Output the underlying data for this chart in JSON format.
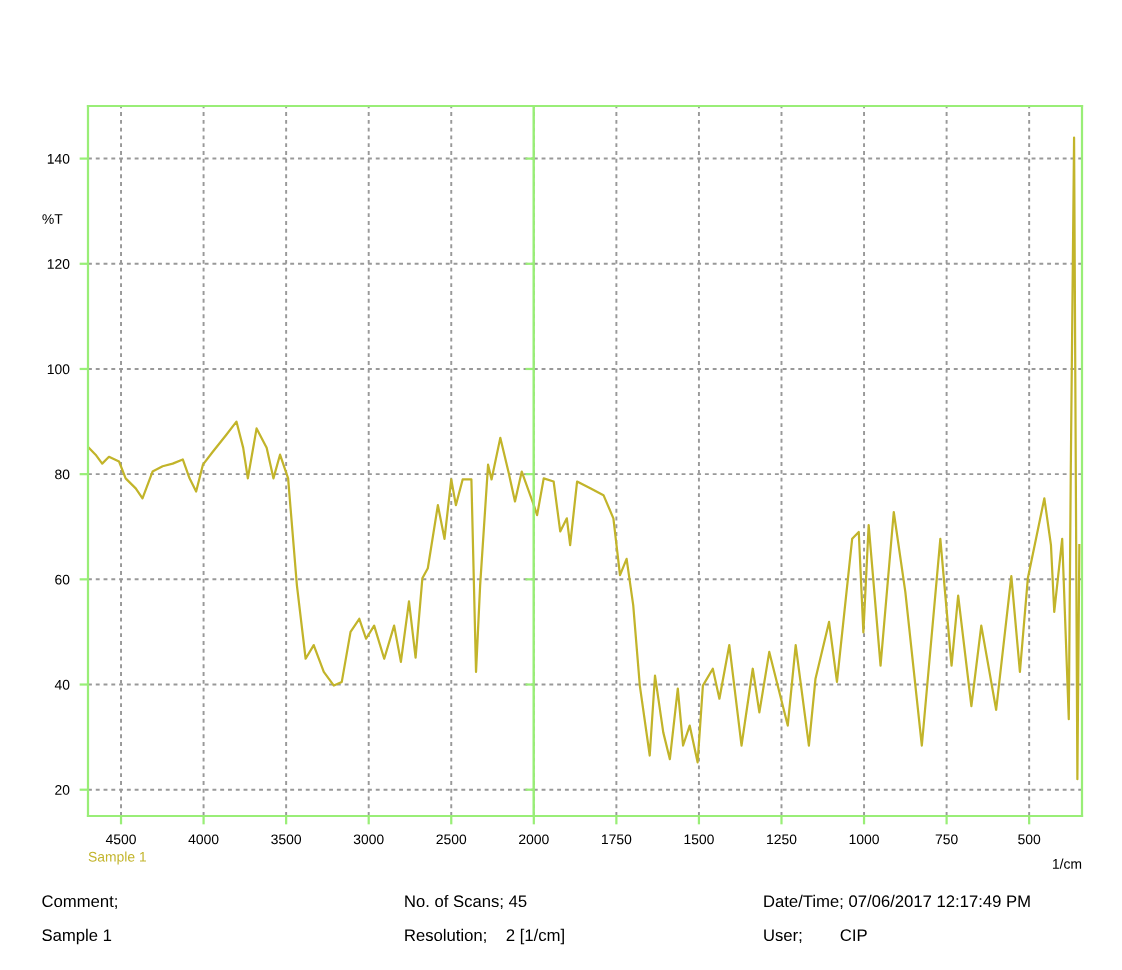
{
  "chart_data": [
    {
      "type": "line",
      "ylabel": "%T",
      "xlim": [
        4700,
        2000
      ],
      "xticks": [
        4500,
        4000,
        3500,
        3000,
        2500
      ],
      "ylim": [
        15,
        150
      ],
      "yticks": [
        20,
        40,
        60,
        80,
        100,
        120,
        140
      ],
      "grid": true,
      "annotations": [
        "Comment;",
        "Sample 1",
        "No. of Scans; 45",
        "Resolution;    2 [1/cm]",
        "Date/Time; 07/06/2017 12:17:49 PM",
        "User;        CIP"
      ],
      "series": [
        {
          "name": "Sample 1",
          "color": "#c2b42a",
          "x": [
            4695,
            4654,
            4614,
            4573,
            4512,
            4472,
            4411,
            4370,
            4309,
            4248,
            4187,
            4126,
            4085,
            4045,
            4004,
            3943,
            3862,
            3801,
            3760,
            3732,
            3679,
            3618,
            3577,
            3537,
            3488,
            3435,
            3382,
            3333,
            3272,
            3211,
            3163,
            3110,
            3057,
            3016,
            2967,
            2906,
            2846,
            2805,
            2756,
            2716,
            2675,
            2642,
            2581,
            2541,
            2500,
            2472,
            2431,
            2378,
            2350,
            2325,
            2277,
            2256,
            2203,
            2154,
            2114,
            2073,
            2000
          ],
          "values": [
            85.0,
            83.7,
            82.0,
            83.3,
            82.4,
            79.2,
            77.3,
            75.4,
            80.5,
            81.5,
            82.0,
            82.8,
            79.2,
            76.7,
            81.8,
            84.3,
            87.5,
            90.0,
            85.0,
            79.2,
            88.7,
            85.0,
            79.2,
            83.7,
            79.2,
            58.9,
            44.9,
            47.5,
            42.4,
            39.8,
            40.5,
            50.0,
            52.5,
            48.7,
            51.2,
            44.9,
            51.2,
            44.3,
            55.8,
            45.1,
            60.2,
            62.1,
            74.1,
            67.7,
            79.0,
            74.1,
            79.0,
            79.0,
            42.4,
            58.9,
            81.8,
            79.0,
            86.9,
            80.5,
            74.8,
            80.5,
            74.1
          ]
        }
      ]
    },
    {
      "type": "line",
      "xlabel": "1/cm",
      "tick_labels": "x",
      "xlim": [
        2000,
        340
      ],
      "xticks": [
        2000,
        1750,
        1500,
        1250,
        1000,
        750,
        500
      ],
      "ylim": [
        15,
        150
      ],
      "yticks": [
        20,
        40,
        60,
        80,
        100,
        120,
        140
      ],
      "grid": true,
      "series": [
        {
          "color": "#c2b42a",
          "x": [
            2000,
            1990,
            1970,
            1940,
            1920,
            1900,
            1890,
            1869,
            1829,
            1789,
            1759,
            1739,
            1719,
            1699,
            1679,
            1649,
            1633,
            1608,
            1588,
            1564,
            1548,
            1528,
            1504,
            1488,
            1458,
            1438,
            1408,
            1371,
            1337,
            1317,
            1287,
            1231,
            1207,
            1167,
            1147,
            1106,
            1082,
            1036,
            1016,
            1002,
            986,
            950,
            910,
            875,
            825,
            769,
            735,
            715,
            675,
            645,
            600,
            554,
            528,
            504,
            454,
            434,
            424,
            400,
            380,
            374,
            364,
            354,
            348
          ],
          "values": [
            74.1,
            72.2,
            79.2,
            78.6,
            69.1,
            71.6,
            66.5,
            78.6,
            77.3,
            76.0,
            71.6,
            60.8,
            63.9,
            55.1,
            39.8,
            26.5,
            41.7,
            30.9,
            25.8,
            39.2,
            28.4,
            32.2,
            25.2,
            39.8,
            43.0,
            37.3,
            47.5,
            28.4,
            43.0,
            34.7,
            46.2,
            32.2,
            47.5,
            28.4,
            41.1,
            51.9,
            40.5,
            67.7,
            69.0,
            49.9,
            70.3,
            43.6,
            72.8,
            57.6,
            28.4,
            67.7,
            43.6,
            56.9,
            35.9,
            51.2,
            35.2,
            60.6,
            42.4,
            60.2,
            75.4,
            66.5,
            53.8,
            67.7,
            33.4,
            80.5,
            144.0,
            22.0,
            66.5
          ]
        }
      ]
    }
  ]
}
